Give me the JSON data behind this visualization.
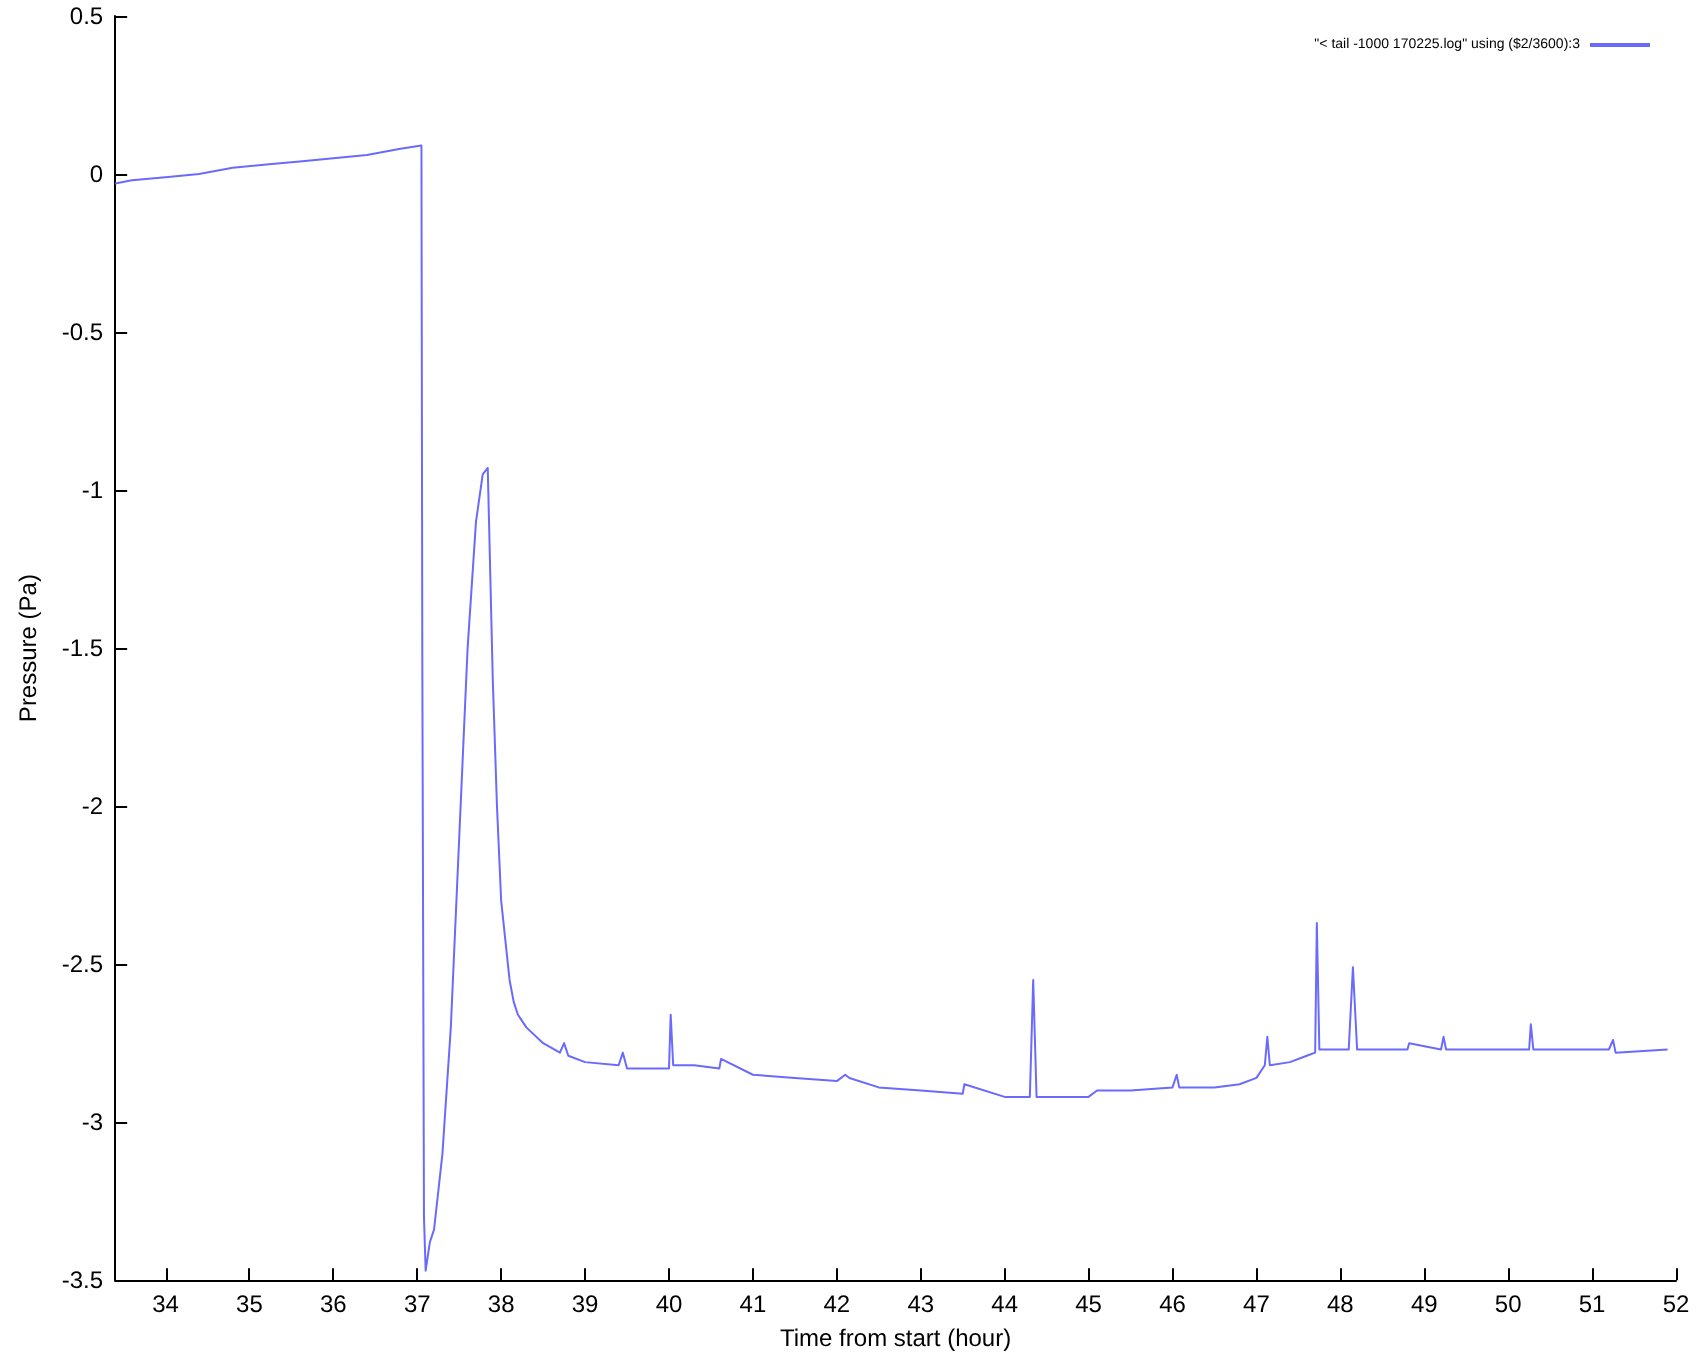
{
  "chart_data": {
    "type": "line",
    "xlabel": "Time from start (hour)",
    "ylabel": "Pressure (Pa)",
    "xlim": [
      33.4,
      52
    ],
    "xticks": [
      34,
      35,
      36,
      37,
      38,
      39,
      40,
      41,
      42,
      43,
      44,
      45,
      46,
      47,
      48,
      49,
      50,
      51,
      52
    ],
    "ylim": [
      -3.5,
      0.5
    ],
    "yticks": [
      -3.5,
      -3,
      -2.5,
      -2,
      -1.5,
      -1,
      -0.5,
      0,
      0.5
    ],
    "grid": false,
    "legend": "top right",
    "marker": "none",
    "line_style": "solid",
    "series": [
      {
        "name": "\"< tail -1000 170225.log\" using ($2/3600):3",
        "color": "#6a6aff",
        "x": [
          33.4,
          33.6,
          34,
          34.4,
          34.8,
          35.2,
          35.6,
          36,
          36.4,
          36.8,
          37.05,
          37.06,
          37.08,
          37.1,
          37.15,
          37.2,
          37.3,
          37.4,
          37.5,
          37.6,
          37.7,
          37.78,
          37.84,
          37.9,
          37.95,
          38.0,
          38.1,
          38.15,
          38.2,
          38.3,
          38.5,
          38.7,
          38.75,
          38.8,
          39.0,
          39.4,
          39.45,
          39.5,
          39.8,
          40.0,
          40.02,
          40.05,
          40.3,
          40.6,
          40.62,
          41.0,
          41.5,
          42.0,
          42.1,
          42.15,
          42.5,
          43.0,
          43.5,
          43.52,
          44.0,
          44.3,
          44.34,
          44.38,
          44.5,
          45.0,
          45.1,
          45.5,
          46.0,
          46.05,
          46.08,
          46.5,
          46.8,
          47.0,
          47.1,
          47.13,
          47.16,
          47.4,
          47.6,
          47.7,
          47.72,
          47.75,
          48.1,
          48.15,
          48.2,
          48.8,
          48.82,
          49.2,
          49.23,
          49.26,
          50.0,
          50.25,
          50.27,
          50.3,
          51.2,
          51.25,
          51.28,
          51.9
        ],
        "values": [
          -0.03,
          -0.02,
          -0.01,
          0.0,
          0.02,
          0.03,
          0.04,
          0.05,
          0.06,
          0.08,
          0.09,
          -1.5,
          -3.3,
          -3.47,
          -3.38,
          -3.34,
          -3.1,
          -2.7,
          -2.1,
          -1.5,
          -1.1,
          -0.95,
          -0.93,
          -1.6,
          -2.0,
          -2.3,
          -2.55,
          -2.62,
          -2.66,
          -2.7,
          -2.75,
          -2.78,
          -2.75,
          -2.79,
          -2.81,
          -2.82,
          -2.78,
          -2.83,
          -2.83,
          -2.83,
          -2.66,
          -2.82,
          -2.82,
          -2.83,
          -2.8,
          -2.85,
          -2.86,
          -2.87,
          -2.85,
          -2.86,
          -2.89,
          -2.9,
          -2.91,
          -2.88,
          -2.92,
          -2.92,
          -2.55,
          -2.92,
          -2.92,
          -2.92,
          -2.9,
          -2.9,
          -2.89,
          -2.85,
          -2.89,
          -2.89,
          -2.88,
          -2.86,
          -2.82,
          -2.73,
          -2.82,
          -2.81,
          -2.79,
          -2.78,
          -2.37,
          -2.77,
          -2.77,
          -2.51,
          -2.77,
          -2.77,
          -2.75,
          -2.77,
          -2.73,
          -2.77,
          -2.77,
          -2.77,
          -2.69,
          -2.77,
          -2.77,
          -2.74,
          -2.78,
          -2.77
        ]
      }
    ]
  }
}
